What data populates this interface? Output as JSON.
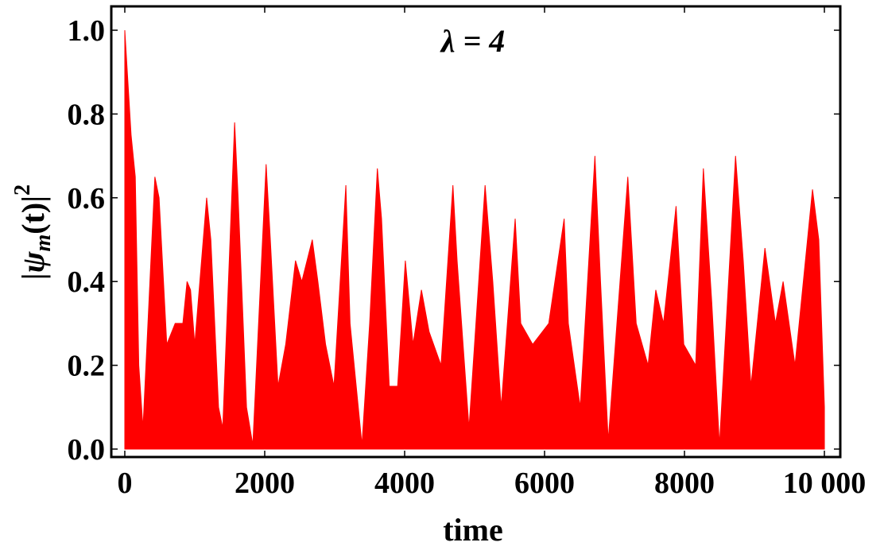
{
  "chart_data": {
    "type": "area",
    "title": "λ = 4",
    "xlabel": "time",
    "ylabel": {
      "lead": "|ψ",
      "sub": "m",
      "tail": "(t)|",
      "sup": "2"
    },
    "color": "#ff0000",
    "x": [
      0,
      90,
      150,
      200,
      260,
      430,
      490,
      600,
      720,
      830,
      890,
      940,
      1000,
      1170,
      1230,
      1340,
      1400,
      1570,
      1620,
      1740,
      1830,
      2020,
      2080,
      2190,
      2300,
      2440,
      2530,
      2680,
      2760,
      2870,
      2990,
      3160,
      3220,
      3390,
      3500,
      3610,
      3670,
      3780,
      3900,
      4010,
      4120,
      4240,
      4350,
      4520,
      4690,
      4750,
      4920,
      5150,
      5260,
      5380,
      5580,
      5660,
      5830,
      6060,
      6280,
      6340,
      6510,
      6720,
      6800,
      6910,
      7190,
      7310,
      7480,
      7590,
      7700,
      7880,
      7990,
      8160,
      8270,
      8390,
      8500,
      8730,
      8840,
      8950,
      9150,
      9300,
      9410,
      9580,
      9830,
      9920,
      10000
    ],
    "values": [
      1.0,
      0.75,
      0.65,
      0.2,
      0.05,
      0.65,
      0.6,
      0.25,
      0.3,
      0.3,
      0.4,
      0.38,
      0.25,
      0.6,
      0.5,
      0.1,
      0.05,
      0.78,
      0.6,
      0.1,
      0.01,
      0.68,
      0.5,
      0.15,
      0.25,
      0.45,
      0.4,
      0.5,
      0.4,
      0.25,
      0.15,
      0.63,
      0.3,
      0.01,
      0.3,
      0.67,
      0.55,
      0.15,
      0.15,
      0.45,
      0.25,
      0.38,
      0.28,
      0.2,
      0.63,
      0.45,
      0.05,
      0.63,
      0.4,
      0.1,
      0.55,
      0.3,
      0.25,
      0.3,
      0.55,
      0.3,
      0.1,
      0.7,
      0.4,
      0.02,
      0.65,
      0.3,
      0.2,
      0.38,
      0.3,
      0.58,
      0.25,
      0.2,
      0.67,
      0.35,
      0.01,
      0.7,
      0.45,
      0.15,
      0.48,
      0.3,
      0.4,
      0.2,
      0.62,
      0.5,
      0.1
    ],
    "xlim": [
      -193,
      10227
    ],
    "ylim": [
      -0.019,
      1.057
    ],
    "xticks": [
      0,
      2000,
      4000,
      6000,
      8000,
      {
        "value": 10000,
        "label": "10 000"
      }
    ],
    "yticks": [
      {
        "value": 0,
        "label": "0.0"
      },
      0.2,
      0.4,
      0.6,
      0.8,
      {
        "value": 1,
        "label": "1.0"
      }
    ]
  }
}
